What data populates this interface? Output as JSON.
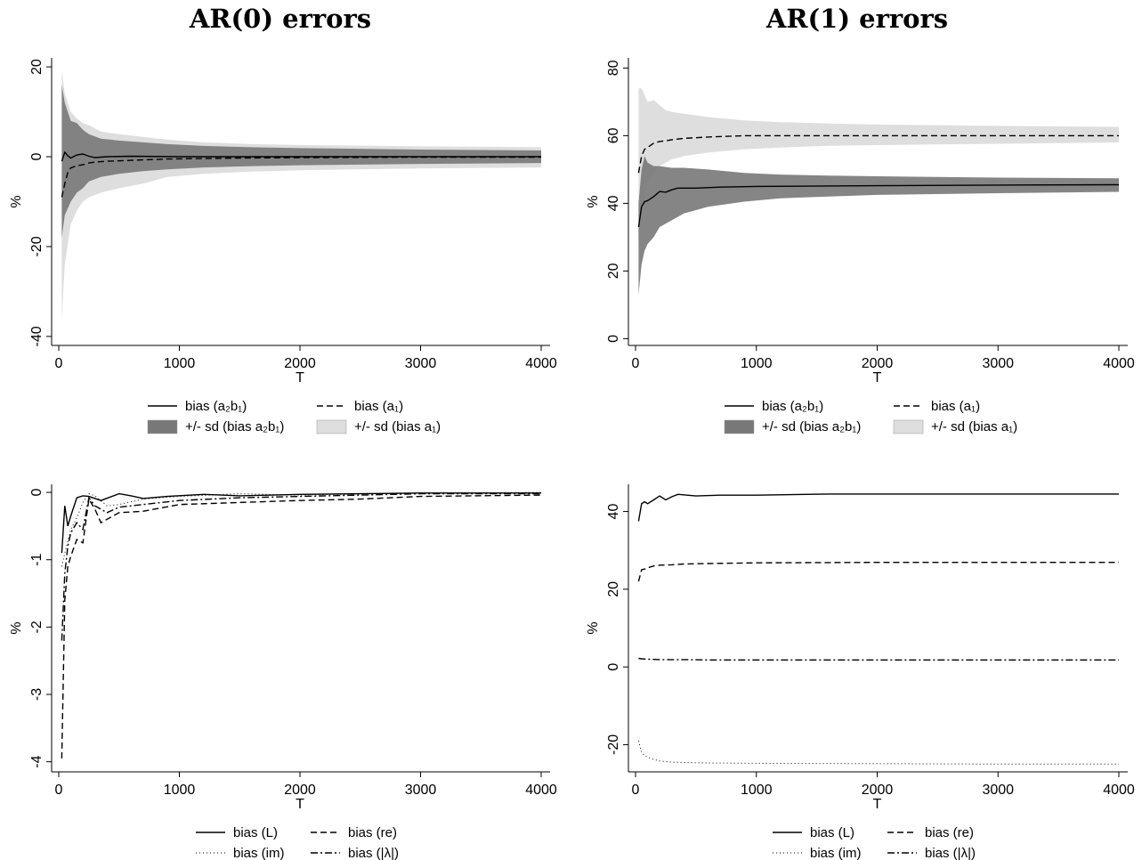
{
  "titles": {
    "left": "AR(0) errors",
    "right": "AR(1) errors"
  },
  "chart_data": [
    {
      "id": "ar0_bias",
      "type": "area",
      "xlabel": "T",
      "ylabel": "%",
      "xlim": [
        0,
        4000
      ],
      "ylim": [
        -42,
        22
      ],
      "xticks": [
        0,
        1000,
        2000,
        3000,
        4000
      ],
      "yticks": [
        -40,
        -20,
        0,
        20
      ],
      "bands": [
        {
          "name": "+/- sd (bias a₁)",
          "color": "#dedede",
          "x": [
            25,
            50,
            100,
            150,
            200,
            250,
            350,
            500,
            700,
            900,
            1200,
            1600,
            2000,
            3000,
            4000
          ],
          "upper": [
            19,
            14,
            10,
            8.5,
            7.5,
            7,
            5.6,
            5,
            4.4,
            3.8,
            3.2,
            2.8,
            2.6,
            2.3,
            2.1
          ],
          "lower": [
            -36,
            -24,
            -15,
            -12,
            -10,
            -9,
            -8,
            -7,
            -6,
            -4.5,
            -3.8,
            -3.3,
            -3,
            -2.6,
            -2.4
          ]
        },
        {
          "name": "+/- sd (bias a₂b₁)",
          "color": "#787878",
          "x": [
            25,
            50,
            100,
            150,
            200,
            250,
            350,
            500,
            700,
            900,
            1200,
            1600,
            2000,
            3000,
            4000
          ],
          "upper": [
            16,
            12,
            8,
            7.5,
            6,
            5,
            4,
            3.6,
            3.2,
            2.8,
            2.4,
            2.1,
            1.9,
            1.6,
            1.4
          ],
          "lower": [
            -18,
            -13,
            -10,
            -8,
            -7,
            -5.5,
            -4.5,
            -3.8,
            -3.2,
            -2.8,
            -2.4,
            -2.1,
            -1.9,
            -1.6,
            -1.4
          ]
        }
      ],
      "series": [
        {
          "name": "bias (a₂b₁)",
          "dash": "",
          "x": [
            25,
            50,
            75,
            100,
            150,
            200,
            250,
            300,
            400,
            600,
            1000,
            2000,
            3000,
            4000
          ],
          "values": [
            -1,
            1,
            0.2,
            -0.3,
            0.4,
            0.6,
            0.1,
            -0.2,
            0,
            0.1,
            0,
            0,
            0,
            0
          ]
        },
        {
          "name": "bias (a₁)",
          "dash": "7,4",
          "x": [
            25,
            50,
            75,
            100,
            150,
            200,
            250,
            300,
            400,
            600,
            900,
            1500,
            2000,
            3000,
            4000
          ],
          "values": [
            -9,
            -6,
            -3.5,
            -2.5,
            -2,
            -1.8,
            -1.4,
            -1.2,
            -1.0,
            -0.8,
            -0.5,
            -0.3,
            -0.2,
            -0.1,
            -0.1
          ]
        }
      ],
      "legend": [
        {
          "label": "bias (a₂b₁)",
          "kind": "line",
          "dash": ""
        },
        {
          "label": "bias (a₁)",
          "kind": "line",
          "dash": "7,4"
        },
        {
          "label": "+/- sd (bias a₂b₁)",
          "kind": "box",
          "color": "#787878"
        },
        {
          "label": "+/- sd (bias a₁)",
          "kind": "box",
          "color": "#dedede"
        }
      ]
    },
    {
      "id": "ar1_bias",
      "type": "area",
      "xlabel": "T",
      "ylabel": "%",
      "xlim": [
        0,
        4000
      ],
      "ylim": [
        -2,
        83
      ],
      "xticks": [
        0,
        1000,
        2000,
        3000,
        4000
      ],
      "yticks": [
        0,
        20,
        40,
        60,
        80
      ],
      "bands": [
        {
          "name": "+/- sd (bias a₁)",
          "color": "#dedede",
          "x": [
            25,
            50,
            100,
            150,
            200,
            250,
            300,
            400,
            600,
            900,
            1200,
            1600,
            2000,
            3000,
            4000
          ],
          "upper": [
            74,
            74,
            70,
            70.5,
            69,
            67.5,
            67,
            66.5,
            65.5,
            64.5,
            64,
            63.6,
            63.3,
            62.9,
            62.6
          ],
          "lower": [
            28,
            39,
            47,
            49,
            51,
            52,
            53,
            54,
            55,
            56,
            56.5,
            57,
            57.2,
            57.6,
            58
          ]
        },
        {
          "name": "+/- sd (bias a₂b₁)",
          "color": "#787878",
          "x": [
            25,
            50,
            75,
            100,
            150,
            200,
            300,
            400,
            600,
            900,
            1200,
            1600,
            2000,
            3000,
            4000
          ],
          "upper": [
            40,
            50,
            54,
            52,
            51,
            51,
            50.5,
            50.5,
            50,
            49,
            48.5,
            48.2,
            48,
            47.6,
            47.4
          ],
          "lower": [
            13,
            22,
            26,
            28,
            30,
            33,
            35,
            37,
            39,
            40.5,
            41.5,
            42,
            42.5,
            43,
            43.4
          ]
        }
      ],
      "series": [
        {
          "name": "bias (a₂b₁)",
          "dash": "",
          "x": [
            25,
            50,
            75,
            100,
            150,
            200,
            250,
            300,
            350,
            500,
            700,
            1000,
            2000,
            3000,
            4000
          ],
          "values": [
            33,
            39,
            40.5,
            40.8,
            42,
            43.5,
            43.3,
            44,
            44.5,
            44.5,
            44.8,
            45,
            45.2,
            45.4,
            45.5
          ]
        },
        {
          "name": "bias (a₁)",
          "dash": "7,4",
          "x": [
            25,
            50,
            75,
            100,
            150,
            200,
            250,
            300,
            400,
            600,
            900,
            1500,
            2000,
            3000,
            4000
          ],
          "values": [
            49,
            54,
            56,
            56.5,
            57.8,
            58.3,
            58.5,
            58.8,
            59.2,
            59.6,
            60,
            60,
            60,
            60,
            60
          ]
        }
      ],
      "legend": [
        {
          "label": "bias (a₂b₁)",
          "kind": "line",
          "dash": ""
        },
        {
          "label": "bias (a₁)",
          "kind": "line",
          "dash": "7,4"
        },
        {
          "label": "+/- sd (bias a₂b₁)",
          "kind": "box",
          "color": "#787878"
        },
        {
          "label": "+/- sd (bias a₁)",
          "kind": "box",
          "color": "#dedede"
        }
      ]
    },
    {
      "id": "ar0_eigen",
      "type": "line",
      "xlabel": "T",
      "ylabel": "%",
      "xlim": [
        0,
        4000
      ],
      "ylim": [
        -4.15,
        0.12
      ],
      "xticks": [
        0,
        1000,
        2000,
        3000,
        4000
      ],
      "yticks": [
        -4,
        -3,
        -2,
        -1,
        0
      ],
      "bands": [],
      "series": [
        {
          "name": "bias (L)",
          "dash": "",
          "x": [
            25,
            50,
            75,
            100,
            150,
            200,
            250,
            300,
            350,
            500,
            600,
            700,
            900,
            1200,
            1500,
            2000,
            3000,
            4000
          ],
          "values": [
            -0.9,
            -0.2,
            -0.5,
            -0.35,
            -0.08,
            -0.05,
            -0.06,
            -0.09,
            -0.12,
            -0.02,
            -0.05,
            -0.09,
            -0.06,
            -0.03,
            -0.05,
            -0.03,
            -0.01,
            -0.01
          ]
        },
        {
          "name": "bias (re)",
          "dash": "7,4",
          "x": [
            25,
            50,
            75,
            100,
            150,
            200,
            250,
            300,
            350,
            500,
            700,
            1000,
            1500,
            2000,
            2500,
            3000,
            4000
          ],
          "values": [
            -3.95,
            -1.6,
            -1.1,
            -0.95,
            -0.7,
            -0.75,
            -0.1,
            -0.25,
            -0.45,
            -0.3,
            -0.28,
            -0.18,
            -0.15,
            -0.12,
            -0.1,
            -0.06,
            -0.04
          ]
        },
        {
          "name": "bias (im)",
          "dash": "1,3",
          "x": [
            25,
            50,
            100,
            150,
            200,
            250,
            300,
            400,
            500,
            700,
            1000,
            1500,
            2000,
            3000,
            4000
          ],
          "values": [
            -1.1,
            -0.9,
            -0.55,
            -0.38,
            -0.15,
            -0.02,
            -0.05,
            -0.2,
            -0.18,
            -0.1,
            -0.06,
            -0.02,
            -0.04,
            -0.01,
            0
          ]
        },
        {
          "name": "bias (|λ|)",
          "dash": "8,3,2,3",
          "x": [
            25,
            50,
            75,
            100,
            150,
            200,
            250,
            300,
            400,
            500,
            700,
            1000,
            1500,
            2000,
            2500,
            3000,
            4000
          ],
          "values": [
            -2.2,
            -1.2,
            -0.8,
            -0.6,
            -0.45,
            -0.55,
            -0.08,
            -0.2,
            -0.3,
            -0.22,
            -0.18,
            -0.12,
            -0.08,
            -0.06,
            -0.04,
            -0.02,
            -0.02
          ]
        }
      ],
      "legend": [
        {
          "label": "bias (L)",
          "kind": "line",
          "dash": ""
        },
        {
          "label": "bias (re)",
          "kind": "line",
          "dash": "7,4"
        },
        {
          "label": "bias (im)",
          "kind": "line",
          "dash": "1,3"
        },
        {
          "label": "bias (|λ|)",
          "kind": "line",
          "dash": "8,3,2,3"
        }
      ]
    },
    {
      "id": "ar1_eigen",
      "type": "line",
      "xlabel": "T",
      "ylabel": "%",
      "xlim": [
        0,
        4000
      ],
      "ylim": [
        -27,
        47
      ],
      "xticks": [
        0,
        1000,
        2000,
        3000,
        4000
      ],
      "yticks": [
        -20,
        0,
        20,
        40
      ],
      "bands": [],
      "series": [
        {
          "name": "bias (L)",
          "dash": "",
          "x": [
            25,
            50,
            75,
            100,
            150,
            200,
            250,
            300,
            350,
            500,
            700,
            1000,
            1600,
            2000,
            3000,
            4000
          ],
          "values": [
            37.5,
            42,
            42.5,
            42,
            43,
            44,
            43,
            43.8,
            44.4,
            44,
            44.2,
            44.2,
            44.5,
            44.5,
            44.5,
            44.5
          ]
        },
        {
          "name": "bias (re)",
          "dash": "7,4",
          "x": [
            25,
            50,
            75,
            100,
            150,
            200,
            300,
            400,
            600,
            1000,
            2000,
            3000,
            4000
          ],
          "values": [
            22,
            25,
            25.2,
            25.5,
            26,
            26.2,
            26.3,
            26.5,
            26.6,
            26.8,
            26.9,
            26.9,
            26.9
          ]
        },
        {
          "name": "bias (im)",
          "dash": "1,3",
          "x": [
            25,
            50,
            75,
            100,
            150,
            200,
            300,
            400,
            600,
            1000,
            2000,
            3000,
            4000
          ],
          "values": [
            -19,
            -22,
            -22.8,
            -23.2,
            -23.8,
            -24.2,
            -24.5,
            -24.6,
            -24.7,
            -24.8,
            -24.9,
            -25,
            -25
          ]
        },
        {
          "name": "bias (|λ|)",
          "dash": "8,3,2,3",
          "x": [
            25,
            50,
            100,
            200,
            400,
            600,
            1000,
            2000,
            3000,
            4000
          ],
          "values": [
            2.2,
            2.1,
            2.0,
            1.9,
            1.9,
            1.8,
            1.8,
            1.8,
            1.8,
            1.8
          ]
        }
      ],
      "legend": [
        {
          "label": "bias (L)",
          "kind": "line",
          "dash": ""
        },
        {
          "label": "bias (re)",
          "kind": "line",
          "dash": "7,4"
        },
        {
          "label": "bias (im)",
          "kind": "line",
          "dash": "1,3"
        },
        {
          "label": "bias (|λ|)",
          "kind": "line",
          "dash": "8,3,2,3"
        }
      ]
    }
  ]
}
